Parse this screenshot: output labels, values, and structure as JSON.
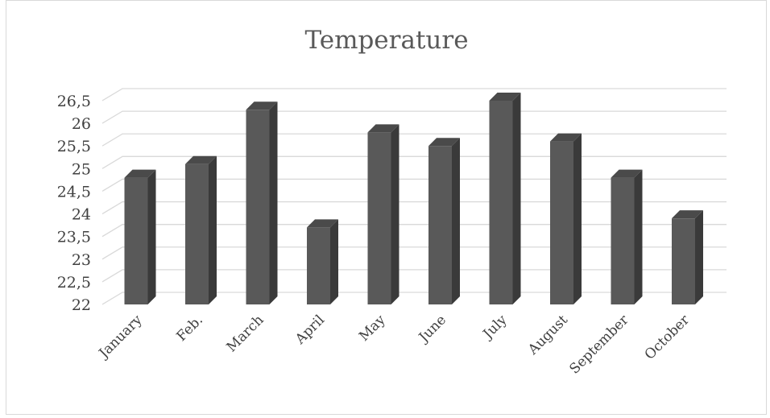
{
  "chart_data": {
    "type": "bar",
    "title": "Temperature",
    "xlabel": "",
    "ylabel": "",
    "categories": [
      "January",
      "Feb.",
      "March",
      "April",
      "May",
      "June",
      "July",
      "August",
      "September",
      "October"
    ],
    "values": [
      24.8,
      25.1,
      26.3,
      23.7,
      25.8,
      25.5,
      26.5,
      25.6,
      24.8,
      23.9
    ],
    "ylim": [
      22,
      26.5
    ],
    "ytick_labels": [
      "22",
      "22,5",
      "23",
      "23,5",
      "24",
      "24,5",
      "25",
      "25,5",
      "26",
      "26,5"
    ],
    "grid": true,
    "style": "3d-column",
    "legend": "none",
    "colors": {
      "bar_front": "#595959",
      "bar_side": "#3a3a3a",
      "bar_top": "#4a4a4a",
      "grid": "#d9d9d9",
      "text": "#404040",
      "title": "#595959"
    }
  }
}
